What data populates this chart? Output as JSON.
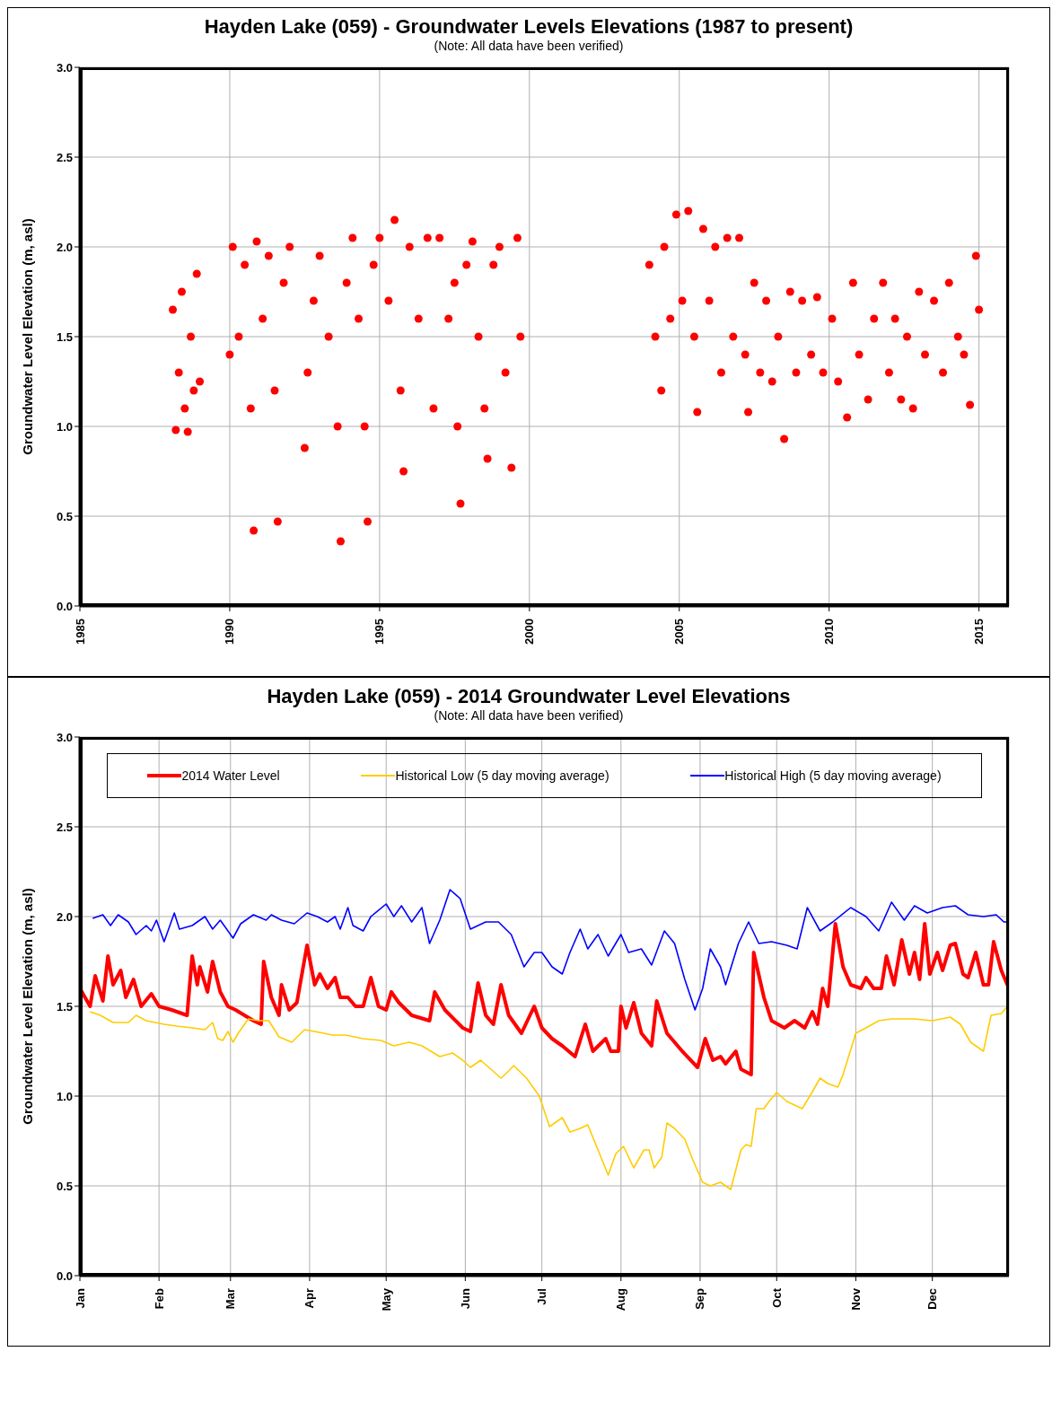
{
  "chart_data": [
    {
      "type": "scatter",
      "title": "Hayden Lake (059) - Groundwater Levels Elevations (1987 to present)",
      "subtitle": "(Note:  All data have  been verified)",
      "ylabel": "Groundwater Level Elevation (m, asl)",
      "color": "#ff0000",
      "marker": "circle",
      "grid": true,
      "x": [
        1988.1,
        1988.2,
        1988.3,
        1988.4,
        1988.5,
        1988.6,
        1988.7,
        1988.8,
        1988.9,
        1989.0,
        1990.0,
        1990.1,
        1990.3,
        1990.5,
        1990.7,
        1990.8,
        1990.9,
        1991.1,
        1991.3,
        1991.5,
        1991.6,
        1991.8,
        1992.0,
        1992.5,
        1992.6,
        1992.8,
        1993.0,
        1993.3,
        1993.6,
        1993.7,
        1993.9,
        1994.1,
        1994.3,
        1994.5,
        1994.6,
        1994.8,
        1995.0,
        1995.3,
        1995.5,
        1995.7,
        1995.8,
        1996.0,
        1996.3,
        1996.6,
        1996.8,
        1997.0,
        1997.3,
        1997.5,
        1997.6,
        1997.7,
        1997.9,
        1998.1,
        1998.3,
        1998.5,
        1998.6,
        1998.8,
        1999.0,
        1999.2,
        1999.4,
        1999.6,
        1999.7,
        2004.0,
        2004.2,
        2004.4,
        2004.5,
        2004.7,
        2004.9,
        2005.1,
        2005.3,
        2005.5,
        2005.6,
        2005.8,
        2006.0,
        2006.2,
        2006.4,
        2006.6,
        2006.8,
        2007.0,
        2007.2,
        2007.3,
        2007.5,
        2007.7,
        2007.9,
        2008.1,
        2008.3,
        2008.5,
        2008.7,
        2008.9,
        2009.1,
        2009.4,
        2009.6,
        2009.8,
        2010.1,
        2010.3,
        2010.6,
        2010.8,
        2011.0,
        2011.3,
        2011.5,
        2011.8,
        2012.0,
        2012.2,
        2012.4,
        2012.6,
        2012.8,
        2013.0,
        2013.2,
        2013.5,
        2013.8,
        2014.0,
        2014.3,
        2014.5,
        2014.7,
        2014.9,
        2015.0
      ],
      "values": [
        1.65,
        0.98,
        1.3,
        1.75,
        1.1,
        0.97,
        1.5,
        1.2,
        1.85,
        1.25,
        1.4,
        2.0,
        1.5,
        1.9,
        1.1,
        0.42,
        2.03,
        1.6,
        1.95,
        1.2,
        0.47,
        1.8,
        2.0,
        0.88,
        1.3,
        1.7,
        1.95,
        1.5,
        1.0,
        0.36,
        1.8,
        2.05,
        1.6,
        1.0,
        0.47,
        1.9,
        2.05,
        1.7,
        2.15,
        1.2,
        0.75,
        2.0,
        1.6,
        2.05,
        1.1,
        2.05,
        1.6,
        1.8,
        1.0,
        0.57,
        1.9,
        2.03,
        1.5,
        1.1,
        0.82,
        1.9,
        2.0,
        1.3,
        0.77,
        2.05,
        1.5,
        1.9,
        1.5,
        1.2,
        2.0,
        1.6,
        2.18,
        1.7,
        2.2,
        1.5,
        1.08,
        2.1,
        1.7,
        2.0,
        1.3,
        2.05,
        1.5,
        2.05,
        1.4,
        1.08,
        1.8,
        1.3,
        1.7,
        1.25,
        1.5,
        0.93,
        1.75,
        1.3,
        1.7,
        1.4,
        1.72,
        1.3,
        1.6,
        1.25,
        1.05,
        1.8,
        1.4,
        1.15,
        1.6,
        1.8,
        1.3,
        1.6,
        1.15,
        1.5,
        1.1,
        1.75,
        1.4,
        1.7,
        1.3,
        1.8,
        1.5,
        1.4,
        1.12,
        1.95,
        1.65
      ],
      "xlim": [
        1985,
        2016
      ],
      "xticks": [
        1985,
        1990,
        1995,
        2000,
        2005,
        2010,
        2015
      ],
      "ylim": [
        0,
        3
      ],
      "yticks": [
        {
          "value": 0,
          "label": "0.0"
        },
        {
          "value": 0.5,
          "label": "0.5"
        },
        {
          "value": 1,
          "label": "1.0"
        },
        {
          "value": 1.5,
          "label": "1.5"
        },
        {
          "value": 2,
          "label": "2.0"
        },
        {
          "value": 2.5,
          "label": "2.5"
        },
        {
          "value": 3,
          "label": "3.0"
        }
      ]
    },
    {
      "type": "line",
      "title": "Hayden Lake (059) - 2014 Groundwater Level Elevations",
      "subtitle": "(Note:  All data have  been verified)",
      "ylabel": "Groundwater Level Elevation (m, asl)",
      "legend": "top",
      "grid": true,
      "marker": "none",
      "xlim": [
        "--01-01",
        "--12-31"
      ],
      "xticks": [
        {
          "value": "--01-01",
          "label": "Jan"
        },
        {
          "value": "--02-01",
          "label": "Feb"
        },
        {
          "value": "--03-01",
          "label": "Mar"
        },
        {
          "value": "--04-01",
          "label": "Apr"
        },
        {
          "value": "--05-01",
          "label": "May"
        },
        {
          "value": "--06-01",
          "label": "Jun"
        },
        {
          "value": "--07-01",
          "label": "Jul"
        },
        {
          "value": "--08-01",
          "label": "Aug"
        },
        {
          "value": "--09-01",
          "label": "Sep"
        },
        {
          "value": "--10-01",
          "label": "Oct"
        },
        {
          "value": "--11-01",
          "label": "Nov"
        },
        {
          "value": "--12-01",
          "label": "Dec"
        }
      ],
      "ylim": [
        0,
        3
      ],
      "yticks": [
        {
          "value": 0,
          "label": "0.0"
        },
        {
          "value": 0.5,
          "label": "0.5"
        },
        {
          "value": 1,
          "label": "1.0"
        },
        {
          "value": 1.5,
          "label": "1.5"
        },
        {
          "value": 2,
          "label": "2.0"
        },
        {
          "value": 2.5,
          "label": "2.5"
        },
        {
          "value": 3,
          "label": "3.0"
        }
      ],
      "series": [
        {
          "name": "2014 Water Level",
          "color": "#ff0000",
          "x": [
            "--01-01",
            "--01-05",
            "--01-07",
            "--01-10",
            "--01-12",
            "--01-14",
            "--01-17",
            "--01-19",
            "--01-22",
            "--01-25",
            "--01-29",
            "--02-01",
            "--02-06",
            "--02-12",
            "--02-14",
            "--02-16",
            "--02-17",
            "--02-20",
            "--02-22",
            "--02-25",
            "--02-28",
            "--03-03",
            "--03-10",
            "--03-13",
            "--03-14",
            "--03-17",
            "--03-20",
            "--03-21",
            "--03-24",
            "--03-27",
            "--03-31",
            "--04-03",
            "--04-05",
            "--04-08",
            "--04-11",
            "--04-13",
            "--04-16",
            "--04-19",
            "--04-22",
            "--04-25",
            "--04-28",
            "--05-01",
            "--05-03",
            "--05-06",
            "--05-11",
            "--05-18",
            "--05-20",
            "--05-24",
            "--05-31",
            "--06-03",
            "--06-06",
            "--06-09",
            "--06-12",
            "--06-15",
            "--06-18",
            "--06-23",
            "--06-28",
            "--07-01",
            "--07-05",
            "--07-09",
            "--07-14",
            "--07-18",
            "--07-21",
            "--07-26",
            "--07-28",
            "--07-31",
            "--08-01",
            "--08-03",
            "--08-06",
            "--08-09",
            "--08-13",
            "--08-15",
            "--08-19",
            "--08-25",
            "--08-31",
            "--09-03",
            "--09-06",
            "--09-09",
            "--09-11",
            "--09-15",
            "--09-17",
            "--09-21",
            "--09-22",
            "--09-26",
            "--09-29",
            "--10-04",
            "--10-08",
            "--10-12",
            "--10-15",
            "--10-17",
            "--10-19",
            "--10-21",
            "--10-24",
            "--10-27",
            "--10-30",
            "--11-03",
            "--11-05",
            "--11-08",
            "--11-11",
            "--11-13",
            "--11-16",
            "--11-19",
            "--11-22",
            "--11-24",
            "--11-26",
            "--11-28",
            "--11-30",
            "--12-03",
            "--12-05",
            "--12-08",
            "--12-10",
            "--12-13",
            "--12-15",
            "--12-18",
            "--12-21",
            "--12-23",
            "--12-25",
            "--12-28",
            "--12-31"
          ],
          "values": [
            1.6,
            1.5,
            1.67,
            1.53,
            1.78,
            1.62,
            1.7,
            1.55,
            1.65,
            1.5,
            1.57,
            1.5,
            1.48,
            1.45,
            1.78,
            1.62,
            1.72,
            1.58,
            1.75,
            1.58,
            1.5,
            1.48,
            1.42,
            1.4,
            1.75,
            1.55,
            1.45,
            1.62,
            1.48,
            1.52,
            1.84,
            1.62,
            1.68,
            1.6,
            1.66,
            1.55,
            1.55,
            1.5,
            1.5,
            1.66,
            1.5,
            1.48,
            1.58,
            1.52,
            1.45,
            1.42,
            1.58,
            1.48,
            1.38,
            1.36,
            1.63,
            1.45,
            1.4,
            1.62,
            1.45,
            1.35,
            1.5,
            1.38,
            1.32,
            1.28,
            1.22,
            1.4,
            1.25,
            1.32,
            1.25,
            1.25,
            1.5,
            1.38,
            1.52,
            1.35,
            1.28,
            1.53,
            1.35,
            1.25,
            1.16,
            1.32,
            1.2,
            1.22,
            1.18,
            1.25,
            1.15,
            1.12,
            1.8,
            1.55,
            1.42,
            1.38,
            1.42,
            1.38,
            1.47,
            1.4,
            1.6,
            1.5,
            1.96,
            1.72,
            1.62,
            1.6,
            1.66,
            1.6,
            1.6,
            1.78,
            1.62,
            1.87,
            1.68,
            1.8,
            1.65,
            1.96,
            1.68,
            1.8,
            1.7,
            1.84,
            1.85,
            1.68,
            1.66,
            1.8,
            1.62,
            1.62,
            1.86,
            1.7,
            1.6
          ]
        },
        {
          "name": "Historical Low (5 day moving average)",
          "color": "#ffcc00",
          "x": [
            "--01-05",
            "--01-09",
            "--01-14",
            "--01-20",
            "--01-23",
            "--01-27",
            "--02-03",
            "--02-08",
            "--02-14",
            "--02-19",
            "--02-22",
            "--02-24",
            "--02-26",
            "--02-28",
            "--03-02",
            "--03-04",
            "--03-08",
            "--03-12",
            "--03-16",
            "--03-20",
            "--03-25",
            "--03-30",
            "--04-03",
            "--04-10",
            "--04-15",
            "--04-22",
            "--04-29",
            "--05-04",
            "--05-10",
            "--05-15",
            "--05-22",
            "--05-27",
            "--05-31",
            "--06-03",
            "--06-07",
            "--06-11",
            "--06-15",
            "--06-18",
            "--06-20",
            "--06-25",
            "--06-30",
            "--07-04",
            "--07-06",
            "--07-09",
            "--07-12",
            "--07-16",
            "--07-19",
            "--07-23",
            "--07-27",
            "--07-30",
            "--08-02",
            "--08-06",
            "--08-10",
            "--08-12",
            "--08-14",
            "--08-17",
            "--08-19",
            "--08-22",
            "--08-26",
            "--08-29",
            "--09-02",
            "--09-05",
            "--09-09",
            "--09-13",
            "--09-17",
            "--09-19",
            "--09-21",
            "--09-23",
            "--09-26",
            "--09-28",
            "--10-01",
            "--10-05",
            "--10-11",
            "--10-14",
            "--10-18",
            "--10-21",
            "--10-25",
            "--10-27",
            "--11-01",
            "--11-05",
            "--11-10",
            "--11-15",
            "--11-24",
            "--12-01",
            "--12-08",
            "--12-12",
            "--12-16",
            "--12-21",
            "--12-24",
            "--12-28",
            "--12-31"
          ],
          "values": [
            1.47,
            1.45,
            1.41,
            1.41,
            1.45,
            1.42,
            1.4,
            1.39,
            1.38,
            1.37,
            1.41,
            1.32,
            1.31,
            1.36,
            1.3,
            1.35,
            1.43,
            1.42,
            1.42,
            1.33,
            1.3,
            1.37,
            1.36,
            1.34,
            1.34,
            1.32,
            1.31,
            1.28,
            1.3,
            1.28,
            1.22,
            1.24,
            1.2,
            1.16,
            1.2,
            1.15,
            1.1,
            1.14,
            1.17,
            1.1,
            1.0,
            0.83,
            0.85,
            0.88,
            0.8,
            0.82,
            0.84,
            0.7,
            0.56,
            0.68,
            0.72,
            0.6,
            0.7,
            0.7,
            0.6,
            0.66,
            0.85,
            0.82,
            0.76,
            0.65,
            0.52,
            0.5,
            0.52,
            0.48,
            0.7,
            0.73,
            0.72,
            0.93,
            0.93,
            0.97,
            1.02,
            0.97,
            0.93,
            1.0,
            1.1,
            1.07,
            1.05,
            1.12,
            1.35,
            1.38,
            1.42,
            1.43,
            1.43,
            1.42,
            1.44,
            1.4,
            1.3,
            1.25,
            1.45,
            1.46,
            1.51
          ]
        },
        {
          "name": "Historical High (5 day moving average)",
          "color": "#0000ff",
          "x": [
            "--01-06",
            "--01-10",
            "--01-13",
            "--01-16",
            "--01-20",
            "--01-23",
            "--01-27",
            "--01-29",
            "--01-31",
            "--02-03",
            "--02-07",
            "--02-09",
            "--02-14",
            "--02-19",
            "--02-22",
            "--02-25",
            "--03-02",
            "--03-05",
            "--03-10",
            "--03-15",
            "--03-17",
            "--03-21",
            "--03-26",
            "--03-31",
            "--04-04",
            "--04-08",
            "--04-11",
            "--04-13",
            "--04-16",
            "--04-18",
            "--04-22",
            "--04-25",
            "--05-01",
            "--05-04",
            "--05-07",
            "--05-11",
            "--05-15",
            "--05-18",
            "--05-22",
            "--05-26",
            "--05-30",
            "--06-03",
            "--06-09",
            "--06-14",
            "--06-19",
            "--06-24",
            "--06-28",
            "--07-01",
            "--07-05",
            "--07-09",
            "--07-12",
            "--07-16",
            "--07-19",
            "--07-23",
            "--07-27",
            "--08-01",
            "--08-04",
            "--08-09",
            "--08-13",
            "--08-18",
            "--08-22",
            "--08-26",
            "--08-30",
            "--09-02",
            "--09-05",
            "--09-09",
            "--09-11",
            "--09-16",
            "--09-20",
            "--09-24",
            "--09-29",
            "--10-05",
            "--10-09",
            "--10-13",
            "--10-18",
            "--10-23",
            "--10-30",
            "--11-05",
            "--11-10",
            "--11-15",
            "--11-20",
            "--11-24",
            "--11-29",
            "--12-05",
            "--12-10",
            "--12-15",
            "--12-21",
            "--12-26",
            "--12-29",
            "--12-31"
          ],
          "values": [
            1.99,
            2.01,
            1.95,
            2.01,
            1.97,
            1.9,
            1.95,
            1.92,
            1.98,
            1.86,
            2.02,
            1.93,
            1.95,
            2.0,
            1.93,
            1.98,
            1.88,
            1.96,
            2.01,
            1.98,
            2.01,
            1.98,
            1.96,
            2.02,
            2.0,
            1.97,
            2.0,
            1.93,
            2.05,
            1.95,
            1.92,
            2.0,
            2.07,
            2.0,
            2.06,
            1.97,
            2.05,
            1.85,
            1.98,
            2.15,
            2.1,
            1.93,
            1.97,
            1.97,
            1.9,
            1.72,
            1.8,
            1.8,
            1.72,
            1.68,
            1.8,
            1.93,
            1.82,
            1.9,
            1.78,
            1.9,
            1.8,
            1.82,
            1.73,
            1.92,
            1.85,
            1.65,
            1.48,
            1.6,
            1.82,
            1.72,
            1.62,
            1.85,
            1.97,
            1.85,
            1.86,
            1.84,
            1.82,
            2.05,
            1.92,
            1.97,
            2.05,
            2.0,
            1.92,
            2.08,
            1.98,
            2.06,
            2.02,
            2.05,
            2.06,
            2.01,
            2.0,
            2.01,
            1.97,
            1.97
          ]
        }
      ]
    }
  ]
}
